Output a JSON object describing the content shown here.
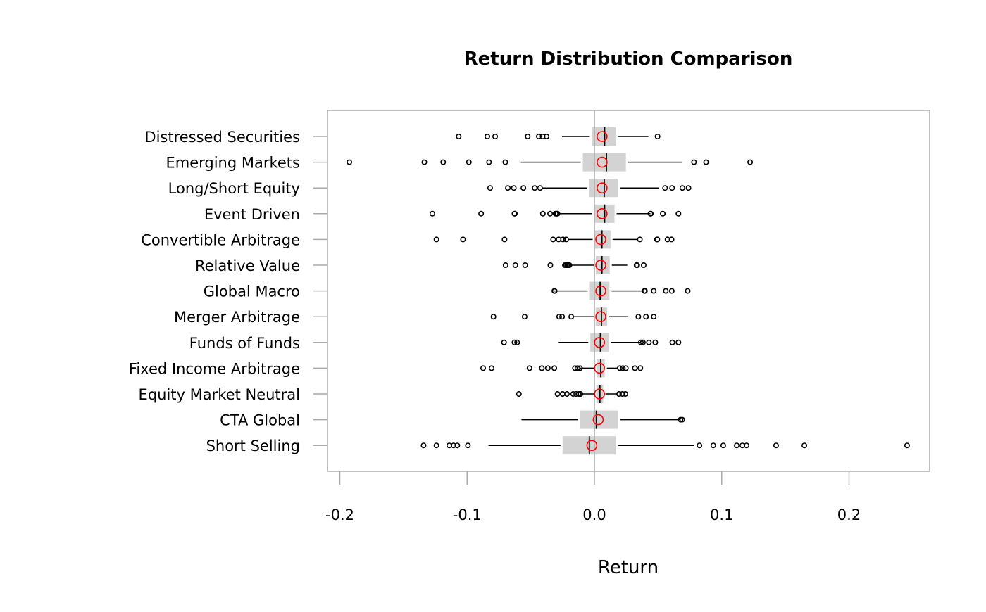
{
  "chart_data": {
    "type": "boxplot",
    "orientation": "horizontal",
    "title": "Return Distribution Comparison",
    "xlabel": "Return",
    "ylabel": "",
    "xlim": [
      -0.21,
      0.264
    ],
    "xticks": [
      -0.2,
      -0.1,
      0.0,
      0.1,
      0.2
    ],
    "xtick_labels": [
      "-0.2",
      "-0.1",
      "0.0",
      "0.1",
      "0.2"
    ],
    "reference_line": 0.0,
    "grid": false,
    "colors": {
      "box": "#d3d3d3",
      "median": "#000000",
      "mean_marker": "#ff0000",
      "outlier": "#000000",
      "frame": "#aaaaaa"
    },
    "series": [
      {
        "name": "Distressed Securities",
        "whisker_low": -0.0255,
        "q1": -0.002,
        "median": 0.008,
        "q3": 0.0168,
        "whisker_high": 0.0424,
        "mean": 0.006,
        "outliers": [
          -0.1066,
          -0.0841,
          -0.078,
          -0.0524,
          -0.0437,
          -0.0407,
          -0.0376,
          0.0496
        ]
      },
      {
        "name": "Emerging Markets",
        "whisker_low": -0.0578,
        "q1": -0.0091,
        "median": 0.0094,
        "q3": 0.0247,
        "whisker_high": 0.0687,
        "mean": 0.006,
        "outliers": [
          -0.1925,
          -0.1336,
          -0.1188,
          -0.0986,
          -0.0828,
          -0.07,
          0.0782,
          0.0877,
          0.1223
        ]
      },
      {
        "name": "Long/Short Equity",
        "whisker_low": -0.041,
        "q1": -0.0044,
        "median": 0.0077,
        "q3": 0.0183,
        "whisker_high": 0.0509,
        "mean": 0.006,
        "outliers": [
          -0.0819,
          -0.068,
          -0.0633,
          -0.0558,
          -0.0469,
          -0.0427,
          0.0555,
          0.061,
          0.0691,
          0.0739
        ]
      },
      {
        "name": "Event Driven",
        "whisker_low": -0.029,
        "q1": -0.0004,
        "median": 0.008,
        "q3": 0.0158,
        "whisker_high": 0.044,
        "mean": 0.006,
        "outliers": [
          -0.1273,
          -0.089,
          -0.0628,
          -0.0625,
          -0.0405,
          -0.0348,
          -0.0305,
          -0.0295,
          -0.029,
          0.044,
          0.0443,
          0.0537,
          0.066
        ]
      },
      {
        "name": "Convertible Arbitrage",
        "whisker_low": -0.0202,
        "q1": 0.0003,
        "median": 0.0059,
        "q3": 0.0126,
        "whisker_high": 0.0337,
        "mean": 0.005,
        "outliers": [
          -0.1241,
          -0.1032,
          -0.0706,
          -0.0324,
          -0.0281,
          -0.0247,
          -0.0222,
          0.0357,
          0.0491,
          0.0494,
          0.0574,
          0.0606
        ]
      },
      {
        "name": "Relative Value",
        "whisker_low": -0.0192,
        "q1": 0.0011,
        "median": 0.0059,
        "q3": 0.012,
        "whisker_high": 0.0258,
        "mean": 0.005,
        "outliers": [
          -0.0698,
          -0.0621,
          -0.0544,
          -0.0346,
          -0.0232,
          -0.0222,
          -0.0212,
          -0.0204,
          -0.0196,
          0.0331,
          0.0336,
          0.0387
        ]
      },
      {
        "name": "Global Macro",
        "whisker_low": -0.0315,
        "q1": -0.0036,
        "median": 0.0045,
        "q3": 0.0118,
        "whisker_high": 0.0393,
        "mean": 0.005,
        "outliers": [
          -0.0315,
          -0.0312,
          0.0393,
          0.0397,
          0.0466,
          0.0561,
          0.0608,
          0.0733
        ]
      },
      {
        "name": "Merger Arbitrage",
        "whisker_low": -0.017,
        "q1": 0.001,
        "median": 0.0055,
        "q3": 0.01,
        "whisker_high": 0.0267,
        "mean": 0.005,
        "outliers": [
          -0.0793,
          -0.0548,
          -0.0277,
          -0.0254,
          -0.0182,
          0.0345,
          0.0405,
          0.0466
        ]
      },
      {
        "name": "Funds of Funds",
        "whisker_low": -0.0281,
        "q1": -0.0032,
        "median": 0.0047,
        "q3": 0.0116,
        "whisker_high": 0.0365,
        "mean": 0.004,
        "outliers": [
          -0.071,
          -0.0628,
          -0.0607,
          0.0365,
          0.0381,
          0.0428,
          0.0478,
          0.0612,
          0.066
        ]
      },
      {
        "name": "Fixed Income Arbitrage",
        "whisker_low": -0.0113,
        "q1": 0.0019,
        "median": 0.005,
        "q3": 0.0081,
        "whisker_high": 0.0183,
        "mean": 0.004,
        "outliers": [
          -0.0874,
          -0.0808,
          -0.051,
          -0.0413,
          -0.0366,
          -0.0315,
          -0.0153,
          -0.0133,
          -0.0113,
          0.0199,
          0.0223,
          0.0247,
          0.0318,
          0.0361
        ]
      },
      {
        "name": "Equity Market Neutral",
        "whisker_low": -0.0103,
        "q1": 0.0015,
        "median": 0.0043,
        "q3": 0.0069,
        "whisker_high": 0.0183,
        "mean": 0.004,
        "outliers": [
          -0.0593,
          -0.029,
          -0.025,
          -0.0216,
          -0.0167,
          -0.0143,
          -0.0123,
          -0.0109,
          0.0193,
          0.0219,
          0.0243
        ]
      },
      {
        "name": "CTA Global",
        "whisker_low": -0.0573,
        "q1": -0.0113,
        "median": 0.0015,
        "q3": 0.0185,
        "whisker_high": 0.0677,
        "mean": 0.003,
        "outliers": [
          0.0677,
          0.069
        ]
      },
      {
        "name": "Short Selling",
        "whisker_low": -0.0832,
        "q1": -0.025,
        "median": -0.004,
        "q3": 0.0169,
        "whisker_high": 0.0782,
        "mean": -0.002,
        "outliers": [
          -0.1342,
          -0.1241,
          -0.114,
          -0.1107,
          -0.1077,
          -0.0994,
          0.0825,
          0.0934,
          0.1012,
          0.1118,
          0.1162,
          0.1195,
          0.1427,
          0.1649,
          0.2456
        ]
      }
    ]
  }
}
